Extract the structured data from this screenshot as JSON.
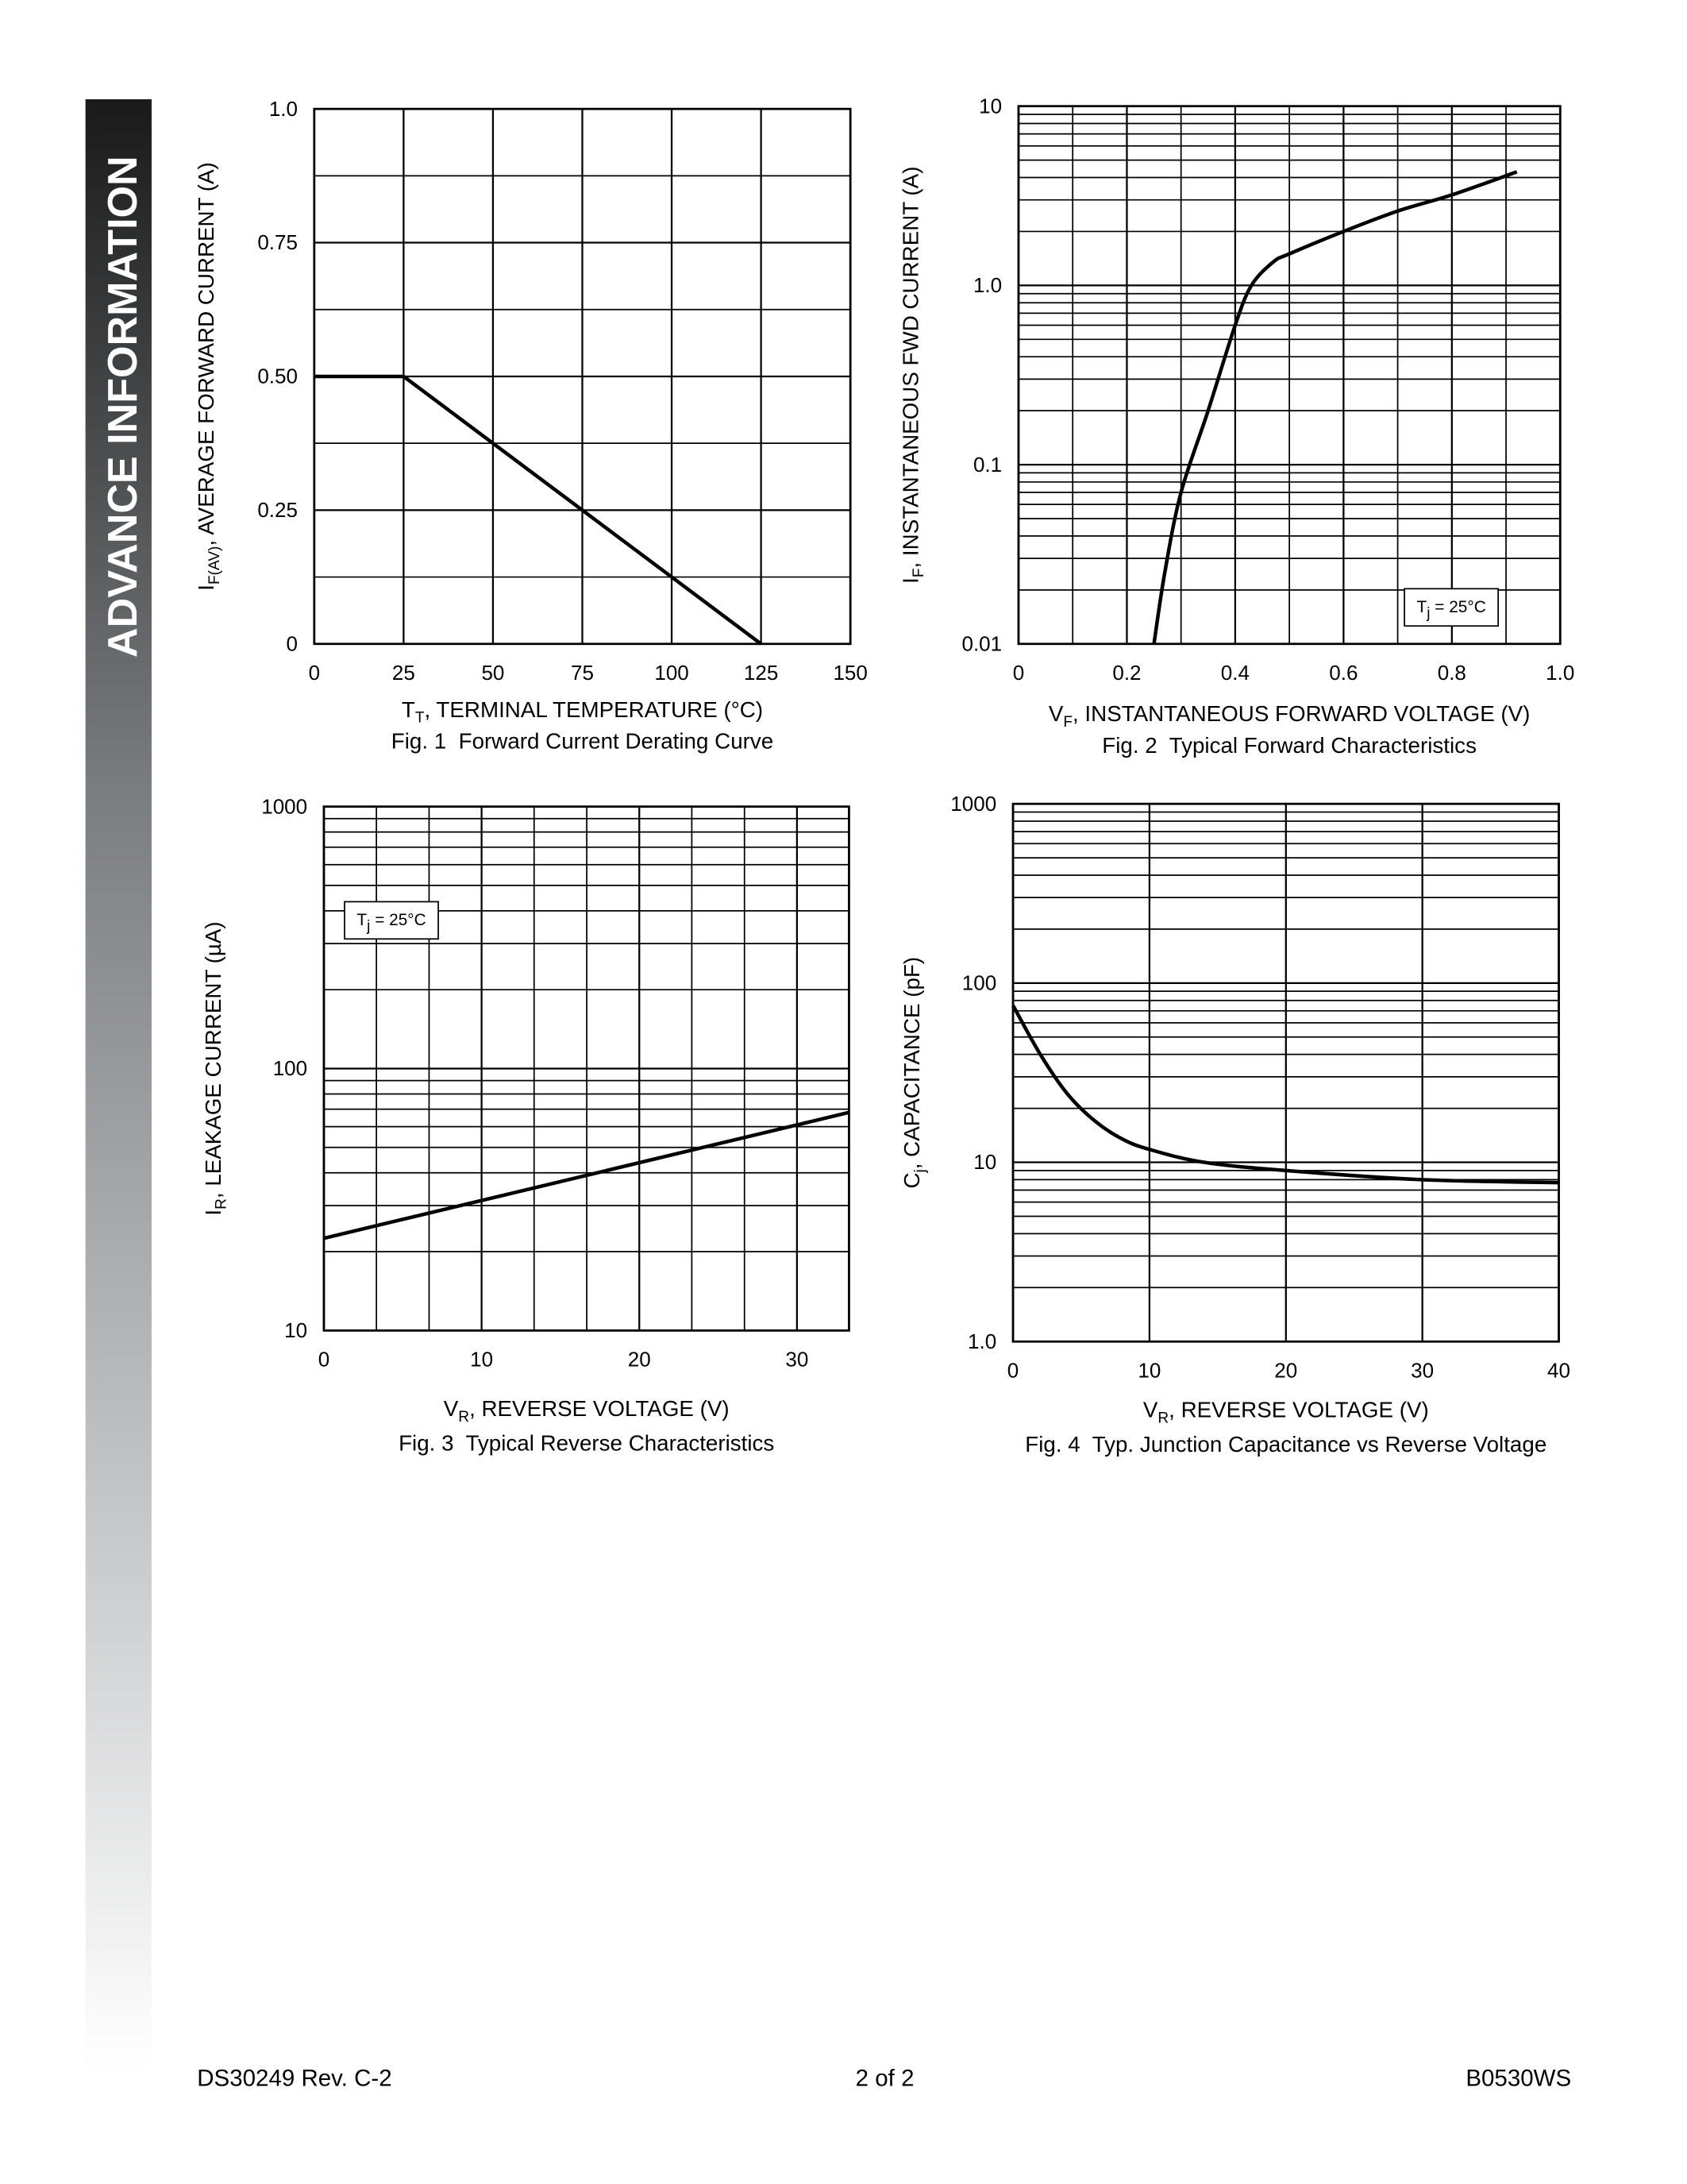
{
  "sidebar": "ADVANCE INFORMATION",
  "footer": {
    "left": "DS30249 Rev. C-2",
    "center": "2 of 2",
    "right": "B0530WS"
  },
  "chart_data": [
    {
      "type": "line",
      "caption": "Fig. 1  Forward Current Derating Curve",
      "xlabel": [
        "T",
        "T",
        ", TERMINAL TEMPERATURE (°C)"
      ],
      "ylabel": [
        "I",
        "F(AV)",
        ", AVERAGE FORWARD CURRENT (A)"
      ],
      "xlim": [
        0,
        150
      ],
      "xticks": [
        0,
        25,
        50,
        75,
        100,
        125,
        150
      ],
      "ylim": [
        0,
        1
      ],
      "yticks": [
        0,
        0.25,
        {
          "value": 0.5,
          "label": "0.50"
        },
        0.75,
        {
          "value": 1,
          "label": "1.0"
        }
      ],
      "yminor": [
        0.125,
        0.375,
        0.625,
        0.875
      ],
      "grid": true,
      "log_y": false,
      "smooth": false,
      "color": "#000000",
      "x": [
        0,
        25,
        125
      ],
      "values": [
        0.5,
        0.5,
        0
      ]
    },
    {
      "type": "line",
      "caption": "Fig. 2  Typical Forward Characteristics",
      "xlabel": [
        "V",
        "F",
        ", INSTANTANEOUS FORWARD VOLTAGE (V)"
      ],
      "ylabel": [
        "I",
        "F",
        ", INSTANTANEOUS FWD CURRENT (A)"
      ],
      "annotation": [
        "T",
        "j",
        " = 25°C"
      ],
      "xlim": [
        0,
        1
      ],
      "xticks": [
        0,
        0.2,
        0.4,
        0.6,
        0.8,
        {
          "value": 1,
          "label": "1.0"
        }
      ],
      "xminor": [
        0.1,
        0.3,
        0.5,
        0.7,
        0.9
      ],
      "ylim": [
        0.01,
        10
      ],
      "yticks": [
        0.01,
        0.1,
        {
          "value": 1,
          "label": "1.0"
        },
        10
      ],
      "yminor": [
        0.02,
        0.03,
        0.04,
        0.05,
        0.06,
        0.07,
        0.08,
        0.09,
        0.2,
        0.3,
        0.4,
        0.5,
        0.6,
        0.7,
        0.8,
        0.9,
        2,
        3,
        4,
        5,
        6,
        7,
        8,
        9
      ],
      "grid": true,
      "log_y": true,
      "smooth": true,
      "color": "#000000",
      "x": [
        0.25,
        0.27,
        0.3,
        0.35,
        0.4,
        0.43,
        0.47,
        0.5,
        0.6,
        0.7,
        0.8,
        0.92
      ],
      "values": [
        0.01,
        0.025,
        0.07,
        0.2,
        0.6,
        1.0,
        1.35,
        1.5,
        2.0,
        2.6,
        3.2,
        4.3
      ]
    },
    {
      "type": "line",
      "caption": "Fig. 3  Typical Reverse Characteristics",
      "xlabel": [
        "V",
        "R",
        ", REVERSE VOLTAGE (V)"
      ],
      "ylabel": [
        "I",
        "R",
        ", LEAKAGE CURRENT (µA)"
      ],
      "annotation": [
        "T",
        "j",
        " = 25°C"
      ],
      "xlim": [
        0,
        33.3
      ],
      "xticks": [
        0,
        10,
        20,
        30
      ],
      "xminor": [
        3.33,
        6.67,
        13.33,
        16.67,
        23.33,
        26.67
      ],
      "ylim": [
        10,
        1000
      ],
      "yticks": [
        10,
        100,
        1000
      ],
      "yminor": [
        20,
        30,
        40,
        50,
        60,
        70,
        80,
        90,
        200,
        300,
        400,
        500,
        600,
        700,
        800,
        900
      ],
      "grid": true,
      "log_y": true,
      "smooth": false,
      "color": "#000000",
      "x": [
        0,
        33.3
      ],
      "values": [
        22.5,
        68
      ]
    },
    {
      "type": "line",
      "caption": "Fig. 4  Typ. Junction Capacitance vs Reverse Voltage",
      "xlabel": [
        "V",
        "R",
        ", REVERSE VOLTAGE (V)"
      ],
      "ylabel": [
        "C",
        "j",
        ", CAPACITANCE (pF)"
      ],
      "xlim": [
        0,
        40
      ],
      "xticks": [
        0,
        10,
        20,
        30,
        40
      ],
      "ylim": [
        1,
        1000
      ],
      "yticks": [
        {
          "value": 1,
          "label": "1.0"
        },
        10,
        100,
        1000
      ],
      "yminor": [
        2,
        3,
        4,
        5,
        6,
        7,
        8,
        9,
        20,
        30,
        40,
        50,
        60,
        70,
        80,
        90,
        200,
        300,
        400,
        500,
        600,
        700,
        800,
        900
      ],
      "grid": true,
      "log_y": true,
      "smooth": true,
      "color": "#000000",
      "x": [
        0,
        2,
        4,
        6,
        8,
        10,
        14,
        20,
        30,
        40
      ],
      "values": [
        75,
        40,
        24,
        17,
        13.5,
        11.8,
        10,
        9,
        8,
        7.7
      ]
    }
  ]
}
